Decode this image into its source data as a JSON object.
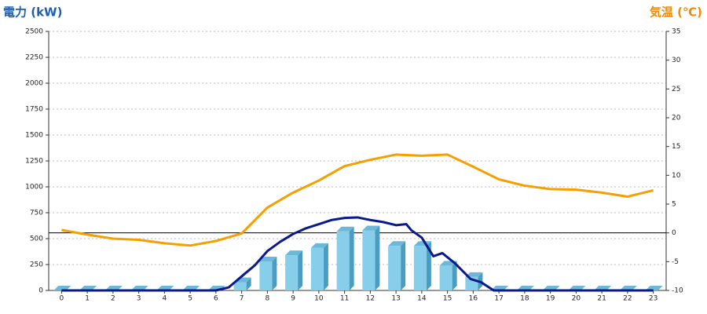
{
  "chart_data": {
    "type": "bar",
    "y_label": "電力 (kW)",
    "y2_label": "気温 (℃)",
    "categories": [
      "0",
      "1",
      "2",
      "3",
      "4",
      "5",
      "6",
      "7",
      "8",
      "9",
      "10",
      "11",
      "12",
      "13",
      "14",
      "15",
      "16",
      "17",
      "18",
      "19",
      "20",
      "21",
      "22",
      "23"
    ],
    "series": [
      {
        "type": "bar",
        "color": "#87ceeb",
        "values": [
          0,
          0,
          0,
          0,
          0,
          0,
          0,
          80,
          280,
          340,
          410,
          570,
          580,
          430,
          430,
          240,
          130,
          0,
          0,
          0,
          0,
          0,
          0,
          0
        ]
      },
      {
        "type": "line",
        "color": "#0a1a8c",
        "x": [
          0,
          1,
          2,
          3,
          4,
          5,
          6,
          6.5,
          7,
          7.5,
          8,
          8.5,
          9,
          9.5,
          10,
          10.5,
          11,
          11.5,
          12,
          12.5,
          13,
          13.4,
          13.6,
          14,
          14.45,
          14.8,
          15.3,
          15.9,
          16.3,
          16.8,
          17,
          18,
          19,
          20,
          21,
          22,
          23
        ],
        "values": [
          0,
          0,
          0,
          0,
          0,
          0,
          0,
          30,
          136,
          240,
          380,
          470,
          545,
          600,
          640,
          680,
          700,
          705,
          680,
          660,
          630,
          640,
          580,
          510,
          330,
          360,
          260,
          110,
          80,
          0,
          0,
          0,
          0,
          0,
          0,
          0,
          0
        ]
      },
      {
        "type": "line",
        "axis": "y2",
        "color": "#f5a000",
        "values": [
          0.5,
          -0.3,
          -1,
          -1.2,
          -1.8,
          -2.2,
          -1.4,
          -0.1,
          4.4,
          7,
          9.1,
          11.6,
          12.7,
          13.6,
          13.4,
          13.6,
          11.5,
          9.3,
          8.2,
          7.6,
          7.5,
          7,
          6.3,
          7.4
        ]
      }
    ],
    "ylim": [
      0,
      2500
    ],
    "yticks": [
      0,
      250,
      500,
      750,
      1000,
      1250,
      1500,
      1750,
      2000,
      2250,
      2500
    ],
    "y2lim": [
      -10,
      35
    ],
    "y2ticks": [
      -10,
      -5,
      0,
      5,
      10,
      15,
      20,
      25,
      30,
      35
    ],
    "y2_reference": 0,
    "grid": true
  }
}
